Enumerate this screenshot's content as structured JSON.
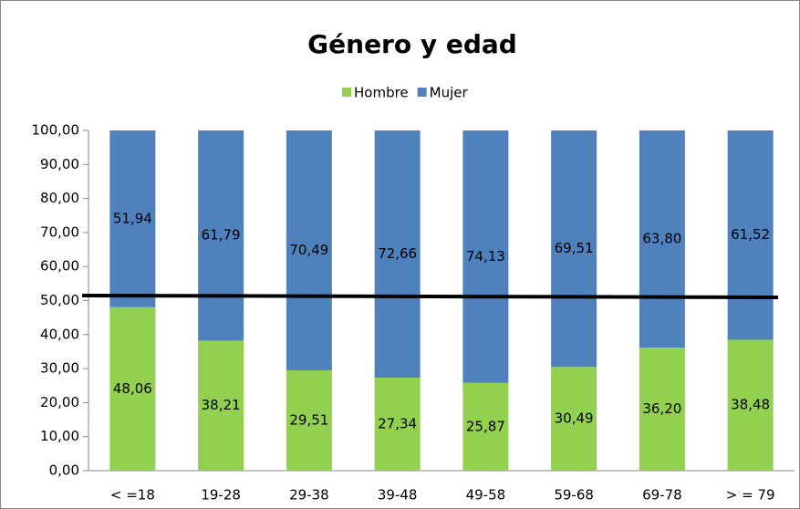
{
  "chart_data": {
    "type": "stacked_bar",
    "title": "Género y edad",
    "categories": [
      "< =18",
      "19-28",
      "29-38",
      "39-48",
      "49-58",
      "59-68",
      "69-78",
      "> = 79"
    ],
    "series": [
      {
        "name": "Hombre",
        "color": "#92d050",
        "values": [
          48.06,
          38.21,
          29.51,
          27.34,
          25.87,
          30.49,
          36.2,
          38.48
        ],
        "value_labels": [
          "48,06",
          "38,21",
          "29,51",
          "27,34",
          "25,87",
          "30,49",
          "36,20",
          "38,48"
        ]
      },
      {
        "name": "Mujer",
        "color": "#4f81bd",
        "values": [
          51.94,
          61.79,
          70.49,
          72.66,
          74.13,
          69.51,
          63.8,
          61.52
        ],
        "value_labels": [
          "51,94",
          "61,79",
          "70,49",
          "72,66",
          "74,13",
          "69,51",
          "63,80",
          "61,52"
        ]
      }
    ],
    "ylim": [
      0,
      100
    ],
    "yticks": [
      {
        "value": 0,
        "label": "0,00"
      },
      {
        "value": 10,
        "label": "10,00"
      },
      {
        "value": 20,
        "label": "20,00"
      },
      {
        "value": 30,
        "label": "30,00"
      },
      {
        "value": 40,
        "label": "40,00"
      },
      {
        "value": 50,
        "label": "50,00"
      },
      {
        "value": 60,
        "label": "60,00"
      },
      {
        "value": 70,
        "label": "70,00"
      },
      {
        "value": 80,
        "label": "80,00"
      },
      {
        "value": 90,
        "label": "90,00"
      },
      {
        "value": 100,
        "label": "100,00"
      }
    ],
    "legend": "top"
  }
}
